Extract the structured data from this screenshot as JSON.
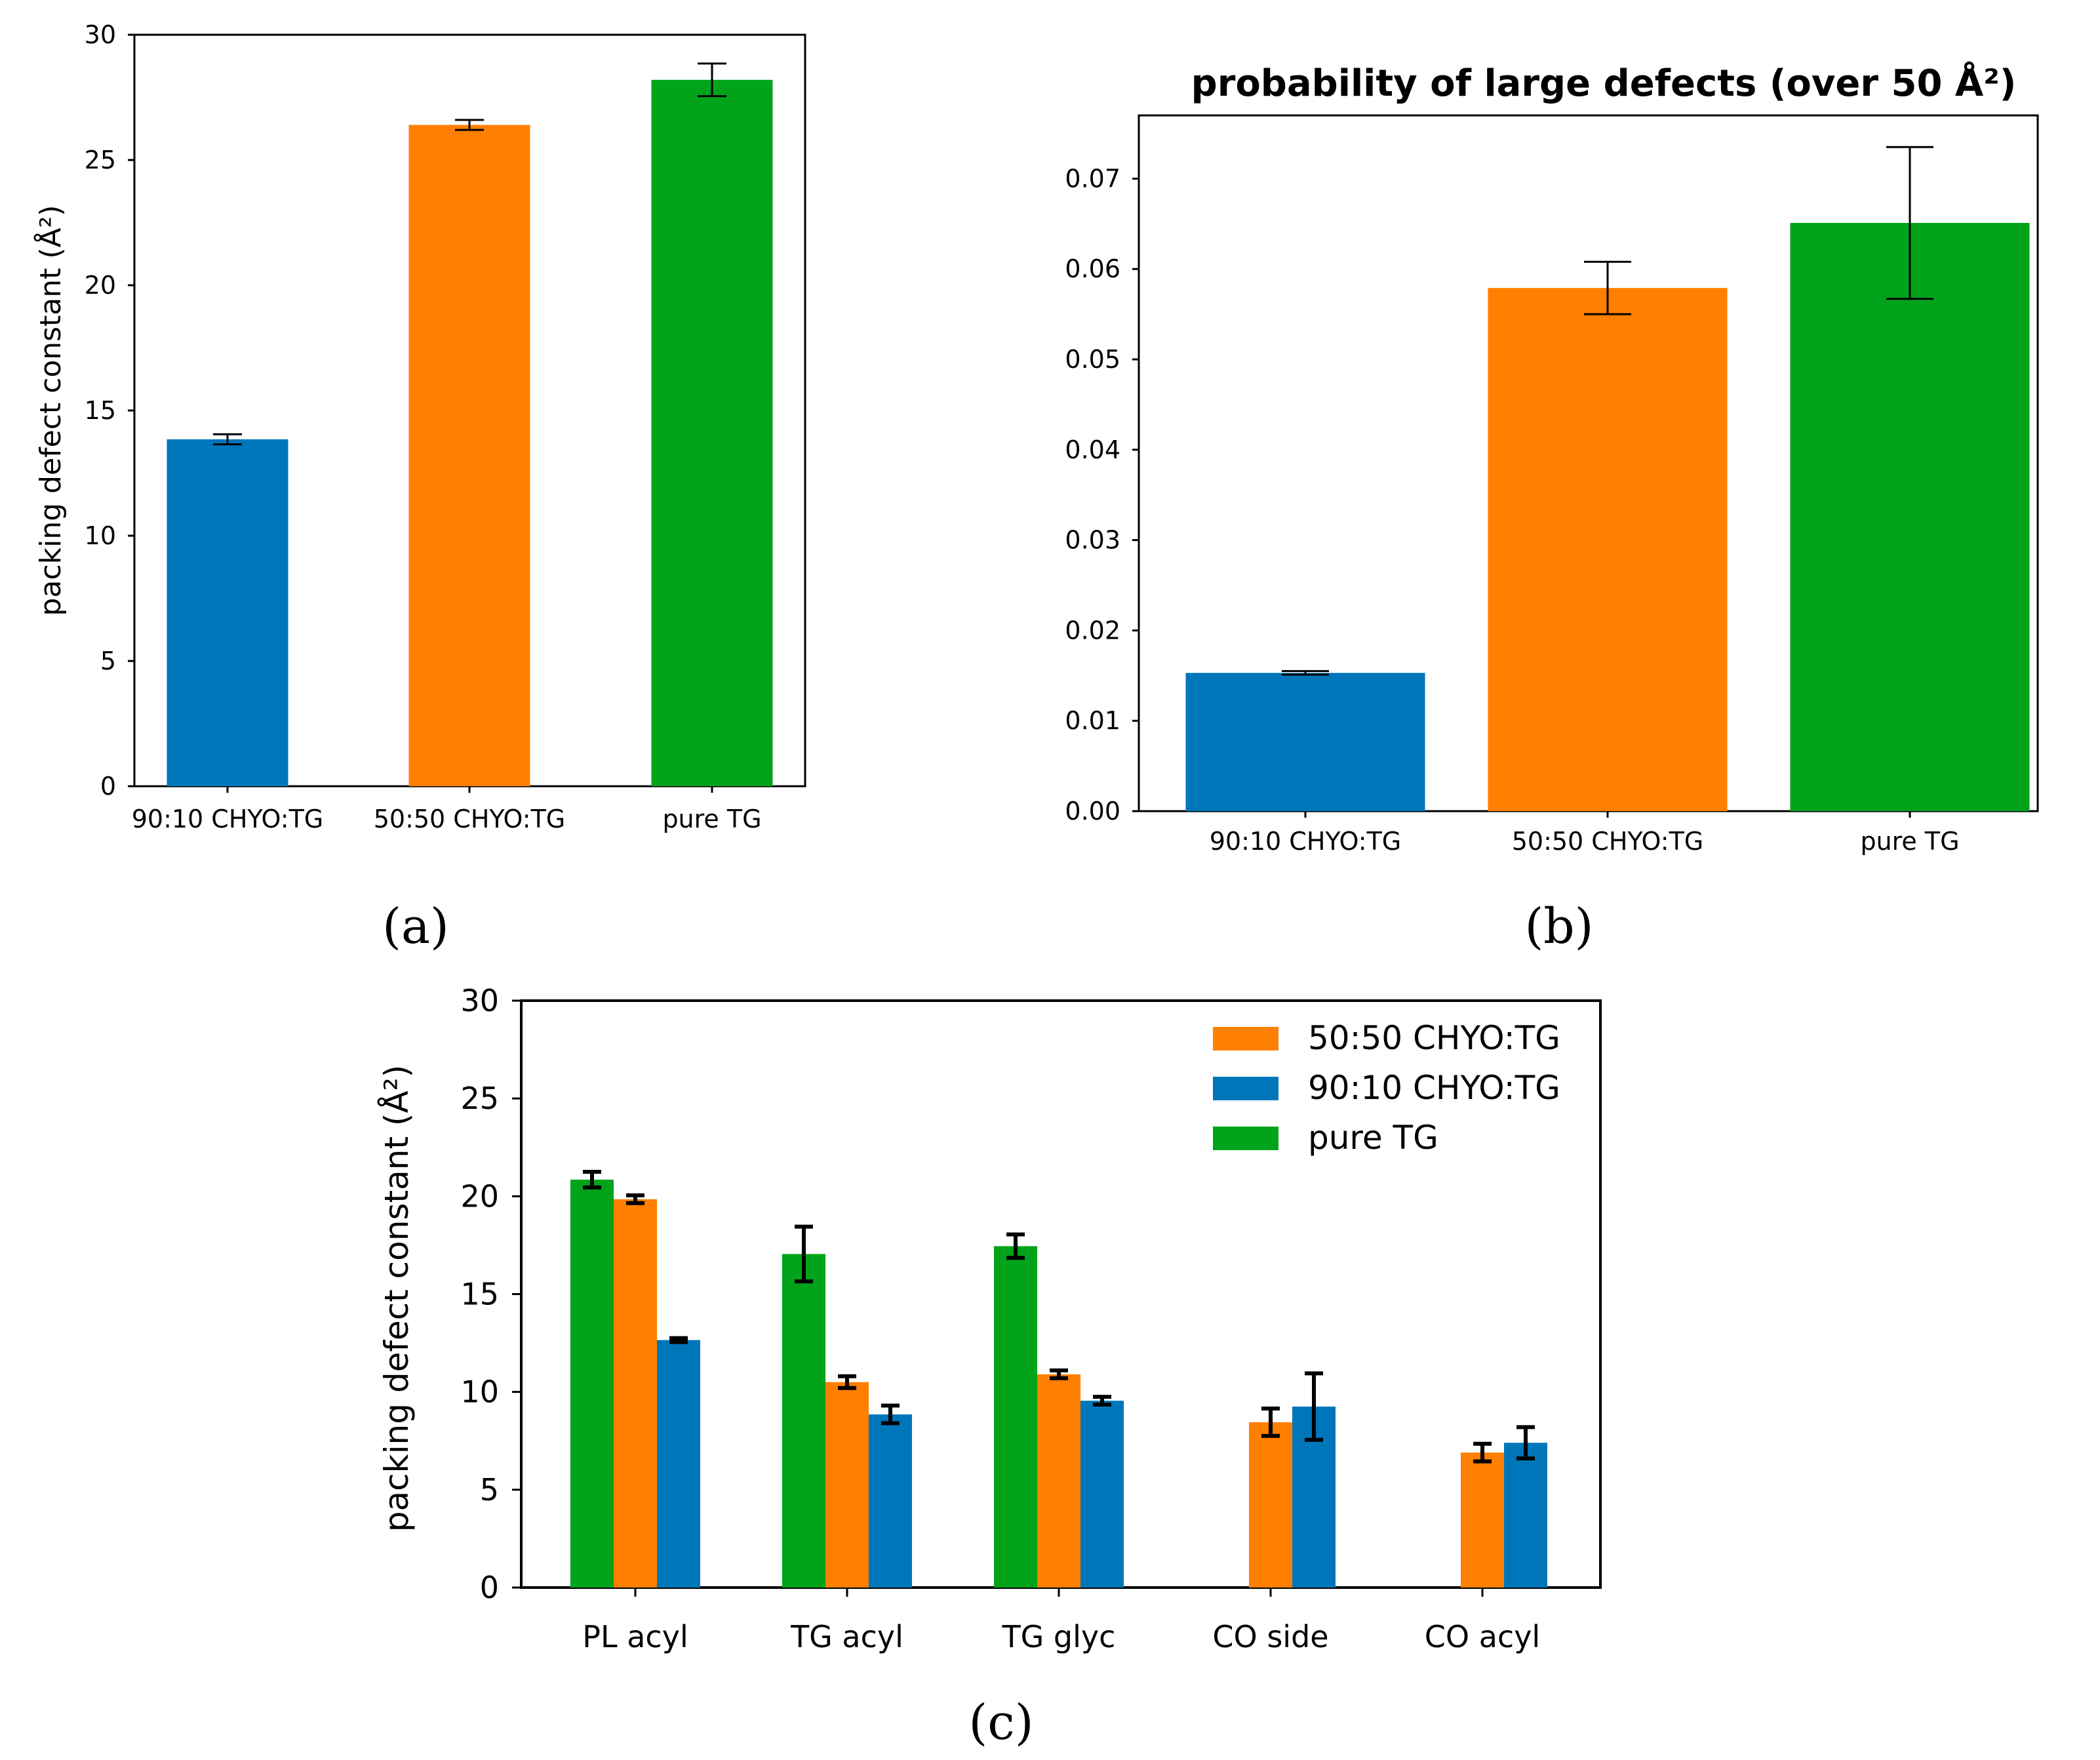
{
  "colors": {
    "blue": "#0076BA",
    "orange": "#FF7F00",
    "green": "#00A31A"
  },
  "panels": {
    "a": "(a)",
    "b": "(b)",
    "c": "(c)"
  },
  "chart_data": [
    {
      "id": "a",
      "type": "bar",
      "title": "",
      "ylabel": "packing defect constant (Å²)",
      "xlabel": "",
      "categories": [
        "90:10 CHYO:TG",
        "50:50 CHYO:TG",
        "pure TG"
      ],
      "values": [
        13.85,
        26.4,
        28.2
      ],
      "errors": [
        0.2,
        0.2,
        0.65
      ],
      "bar_colors": [
        "blue",
        "orange",
        "green"
      ],
      "ylim": [
        0,
        30
      ],
      "yticks": [
        0,
        5,
        10,
        15,
        20,
        25,
        30
      ],
      "ytick_labels": [
        "0",
        "5",
        "10",
        "15",
        "20",
        "25",
        "30"
      ]
    },
    {
      "id": "b",
      "type": "bar",
      "title": "probability of large defects (over 50 Å²)",
      "ylabel": "",
      "xlabel": "",
      "categories": [
        "90:10 CHYO:TG",
        "50:50 CHYO:TG",
        "pure TG"
      ],
      "values": [
        0.0153,
        0.0579,
        0.0651
      ],
      "errors": [
        0.0002,
        0.0029,
        0.0084
      ],
      "bar_colors": [
        "blue",
        "orange",
        "green"
      ],
      "ylim": [
        0,
        0.077
      ],
      "yticks": [
        0,
        0.01,
        0.02,
        0.03,
        0.04,
        0.05,
        0.06,
        0.07
      ],
      "ytick_labels": [
        "0.00",
        "0.01",
        "0.02",
        "0.03",
        "0.04",
        "0.05",
        "0.06",
        "0.07"
      ]
    },
    {
      "id": "c",
      "type": "bar",
      "title": "",
      "ylabel": "packing defect constant (Å²)",
      "xlabel": "",
      "categories": [
        "PL acyl",
        "TG acyl",
        "TG glyc",
        "CO side",
        "CO acyl"
      ],
      "ylim": [
        0,
        30
      ],
      "yticks": [
        0,
        5,
        10,
        15,
        20,
        25,
        30
      ],
      "ytick_labels": [
        "0",
        "5",
        "10",
        "15",
        "20",
        "25",
        "30"
      ],
      "legend_position": "top-right",
      "series": [
        {
          "name": "pure TG",
          "color": "green",
          "slot": 0,
          "values": [
            20.85,
            17.05,
            17.45,
            null,
            null
          ],
          "errors": [
            0.4,
            1.4,
            0.6,
            null,
            null
          ]
        },
        {
          "name": "50:50 CHYO:TG",
          "color": "orange",
          "slot": 1,
          "values": [
            19.85,
            10.5,
            10.9,
            8.45,
            6.9
          ],
          "errors": [
            0.2,
            0.3,
            0.2,
            0.7,
            0.45
          ]
        },
        {
          "name": "90:10 CHYO:TG",
          "color": "blue",
          "slot": 2,
          "values": [
            12.65,
            8.85,
            9.55,
            9.25,
            7.4
          ],
          "errors": [
            0.1,
            0.45,
            0.2,
            1.7,
            0.8
          ]
        }
      ],
      "legend_order": [
        "50:50 CHYO:TG",
        "90:10 CHYO:TG",
        "pure TG"
      ]
    }
  ]
}
